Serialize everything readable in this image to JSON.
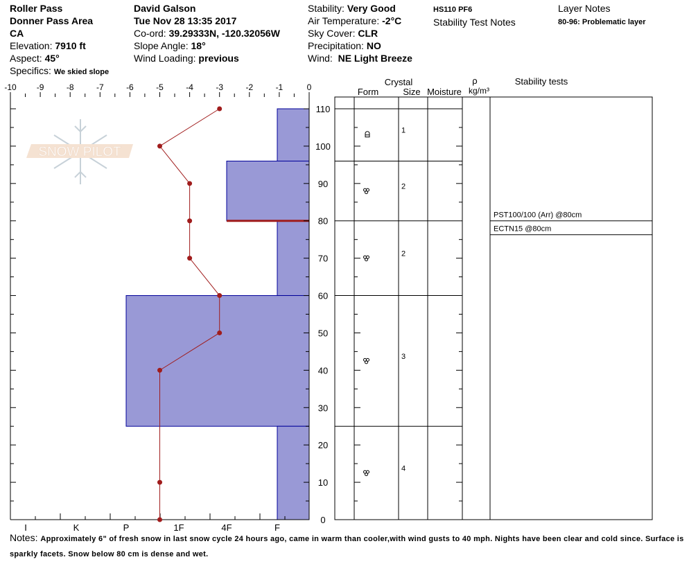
{
  "header": {
    "location": "Roller Pass",
    "area": "Donner Pass Area",
    "state": "CA",
    "elevation_label": "Elevation:",
    "elevation": "7910 ft",
    "aspect_label": "Aspect:",
    "aspect": "45°",
    "specifics_label": "Specifics:",
    "specifics": "We skied slope",
    "observer": "David Galson",
    "datetime": "Tue Nov 28 13:35 2017",
    "coord_label": "Co-ord:",
    "coord": "39.29333N, -120.32056W",
    "slope_label": "Slope Angle:",
    "slope": "18°",
    "wind_loading_label": "Wind Loading:",
    "wind_loading": "previous",
    "stability_label": "Stability:",
    "stability": "Very Good",
    "air_temp_label": "Air Temperature:",
    "air_temp": "-2°C",
    "sky_label": "Sky Cover:",
    "sky": "CLR",
    "precip_label": "Precipitation:",
    "precip": "NO",
    "wind_label": "Wind:",
    "wind": "NE Light Breeze",
    "hs_pf": "HS110 PF6",
    "stability_test_notes_label": "Stability Test Notes",
    "layer_notes_label": "Layer Notes",
    "layer_note": "80-96: Problematic layer"
  },
  "logo": {
    "text": "SNOW PILOT"
  },
  "table": {
    "crystal_label": "Crystal",
    "form_label": "Form",
    "size_label": "Size",
    "moisture_label": "Moisture",
    "density_symbol": "ρ",
    "density_unit": "kg/m³",
    "stability_tests_label": "Stability tests"
  },
  "notes": {
    "label": "Notes:",
    "text": "Approximately 6\" of fresh snow in last snow cycle 24 hours ago, came in warm than cooler,with wind gusts to 40 mph. Nights have been clear and cold since.  Surface is sparkly facets. Snow below 80 cm is dense and wet."
  },
  "chart_data": {
    "type": "snow-profile",
    "temperature_axis": {
      "range": [
        -10,
        0
      ],
      "ticks": [
        "-10",
        "-9",
        "-8",
        "-7",
        "-6",
        "-5",
        "-4",
        "-3",
        "-2",
        "-1",
        "0"
      ]
    },
    "depth_axis": {
      "range": [
        0,
        110
      ],
      "ticks": [
        "0",
        "10",
        "20",
        "30",
        "40",
        "50",
        "60",
        "70",
        "80",
        "90",
        "100",
        "110"
      ]
    },
    "hardness_axis": {
      "ticks": [
        "I",
        "K",
        "P",
        "1F",
        "4F",
        "F"
      ]
    },
    "temperature_profile": [
      {
        "depth": 110,
        "temp": -3
      },
      {
        "depth": 100,
        "temp": -5
      },
      {
        "depth": 90,
        "temp": -4
      },
      {
        "depth": 80,
        "temp": -4
      },
      {
        "depth": 70,
        "temp": -4
      },
      {
        "depth": 60,
        "temp": -3
      },
      {
        "depth": 50,
        "temp": -3
      },
      {
        "depth": 40,
        "temp": -5
      },
      {
        "depth": 10,
        "temp": -5
      },
      {
        "depth": 0,
        "temp": -5
      }
    ],
    "layers": [
      {
        "top": 110,
        "bottom": 96,
        "hardness": "F",
        "form": "DF",
        "size": "1"
      },
      {
        "top": 96,
        "bottom": 80,
        "hardness": "4F",
        "form": "RG",
        "size": "2"
      },
      {
        "top": 80,
        "bottom": 60,
        "hardness": "F",
        "form": "RG",
        "size": "2"
      },
      {
        "top": 60,
        "bottom": 25,
        "hardness": "P",
        "form": "RG",
        "size": "3"
      },
      {
        "top": 25,
        "bottom": 0,
        "hardness": "F",
        "form": "RG",
        "size": "4"
      }
    ],
    "problem_layer_depth": 80,
    "stability_tests": [
      {
        "text": "PST100/100 (Arr) @80cm",
        "depth": 80
      },
      {
        "text": "ECTN15 @80cm",
        "depth": 80
      }
    ],
    "colors": {
      "layer_fill": "#9999d6",
      "layer_edge": "#000099",
      "temp_line": "#a01c1c",
      "problem_line": "#a01c1c"
    }
  }
}
